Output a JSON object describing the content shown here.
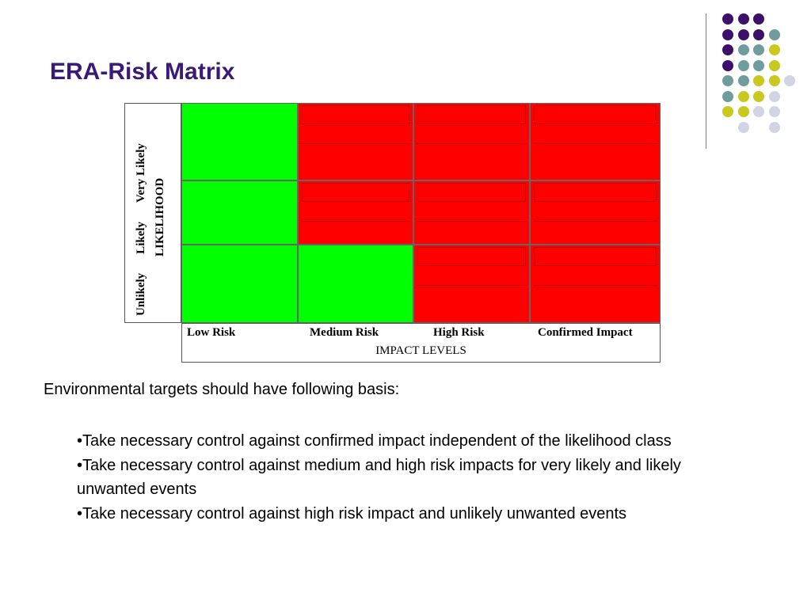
{
  "slide": {
    "title": "ERA-Risk Matrix"
  },
  "colors": {
    "title": "#3a1a78",
    "risk_green": "#00ff00",
    "risk_red": "#ff0000",
    "dot_purple": "#3d0f6b",
    "dot_teal": "#6f9c9c",
    "dot_yellow": "#c8c81e",
    "dot_lavender": "#d3d3e6"
  },
  "decoration": {
    "dot_pattern": [
      [
        "purple",
        "purple",
        "purple",
        ""
      ],
      [
        "purple",
        "purple",
        "purple",
        "teal"
      ],
      [
        "purple",
        "teal",
        "teal",
        "yellow"
      ],
      [
        "purple",
        "teal",
        "teal",
        "yellow"
      ],
      [
        "teal",
        "teal",
        "yellow",
        "yellow",
        "lavender"
      ],
      [
        "teal",
        "yellow",
        "yellow",
        "lavender"
      ],
      [
        "yellow",
        "yellow",
        "lavender",
        "lavender"
      ],
      [
        "",
        "lavender",
        "",
        "lavender"
      ]
    ]
  },
  "matrix": {
    "likelihood_axis": {
      "title": "LIKELIHOOD",
      "classes": [
        "Very Likely",
        "Likely",
        "Unlikely"
      ]
    },
    "impact_axis": {
      "title": "IMPACT LEVELS",
      "levels": [
        "Low Risk",
        "Medium Risk",
        "High Risk",
        "Confirmed Impact"
      ]
    },
    "cells": [
      [
        "green",
        "red",
        "red",
        "red"
      ],
      [
        "green",
        "red",
        "red",
        "red"
      ],
      [
        "green",
        "green",
        "red",
        "red"
      ]
    ]
  },
  "content": {
    "intro": "Environmental targets should have following basis:",
    "bullets": [
      "•Take necessary control against confirmed impact independent of  the likelihood class",
      "•Take necessary control against medium and high risk impacts for very likely and likely unwanted events",
      "•Take necessary control against high risk impact and unlikely unwanted events"
    ]
  }
}
